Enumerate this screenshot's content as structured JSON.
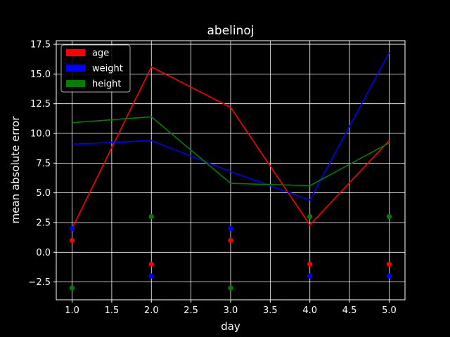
{
  "chart_data": {
    "type": "line",
    "title": "abelinoj",
    "xlabel": "day",
    "ylabel": "mean absolute error",
    "xlim": [
      0.8,
      5.2
    ],
    "ylim": [
      -4.0,
      17.8
    ],
    "x": [
      1.0,
      2.0,
      3.0,
      4.0,
      5.0
    ],
    "x_ticks": [
      "1.0",
      "1.5",
      "2.0",
      "2.5",
      "3.0",
      "3.5",
      "4.0",
      "4.5",
      "5.0"
    ],
    "x_tick_values": [
      1.0,
      1.5,
      2.0,
      2.5,
      3.0,
      3.5,
      4.0,
      4.5,
      5.0
    ],
    "y_ticks": [
      "−2.5",
      "0.0",
      "2.5",
      "5.0",
      "7.5",
      "10.0",
      "12.5",
      "15.0",
      "17.5"
    ],
    "y_tick_values": [
      -2.5,
      0.0,
      2.5,
      5.0,
      7.5,
      10.0,
      12.5,
      15.0,
      17.5
    ],
    "grid": true,
    "legend_position": "top-left",
    "background": "#000000",
    "series": [
      {
        "name": "age",
        "color": "#ff0000",
        "values": [
          2.0,
          15.6,
          12.2,
          2.3,
          9.4
        ]
      },
      {
        "name": "weight",
        "color": "#0000ff",
        "values": [
          9.1,
          9.4,
          6.8,
          4.4,
          16.8
        ]
      },
      {
        "name": "height",
        "color": "#008000",
        "values": [
          10.9,
          11.4,
          5.8,
          5.6,
          9.2
        ]
      }
    ],
    "scatter": [
      {
        "name": "age",
        "color": "#ff0000",
        "values": [
          1.0,
          -1.0,
          1.0,
          -1.0,
          -1.0
        ]
      },
      {
        "name": "weight",
        "color": "#0000ff",
        "values": [
          2.0,
          -2.0,
          2.0,
          -2.0,
          -2.0
        ]
      },
      {
        "name": "height",
        "color": "#008000",
        "values": [
          -3.0,
          3.0,
          -3.0,
          3.0,
          3.0
        ]
      }
    ]
  }
}
